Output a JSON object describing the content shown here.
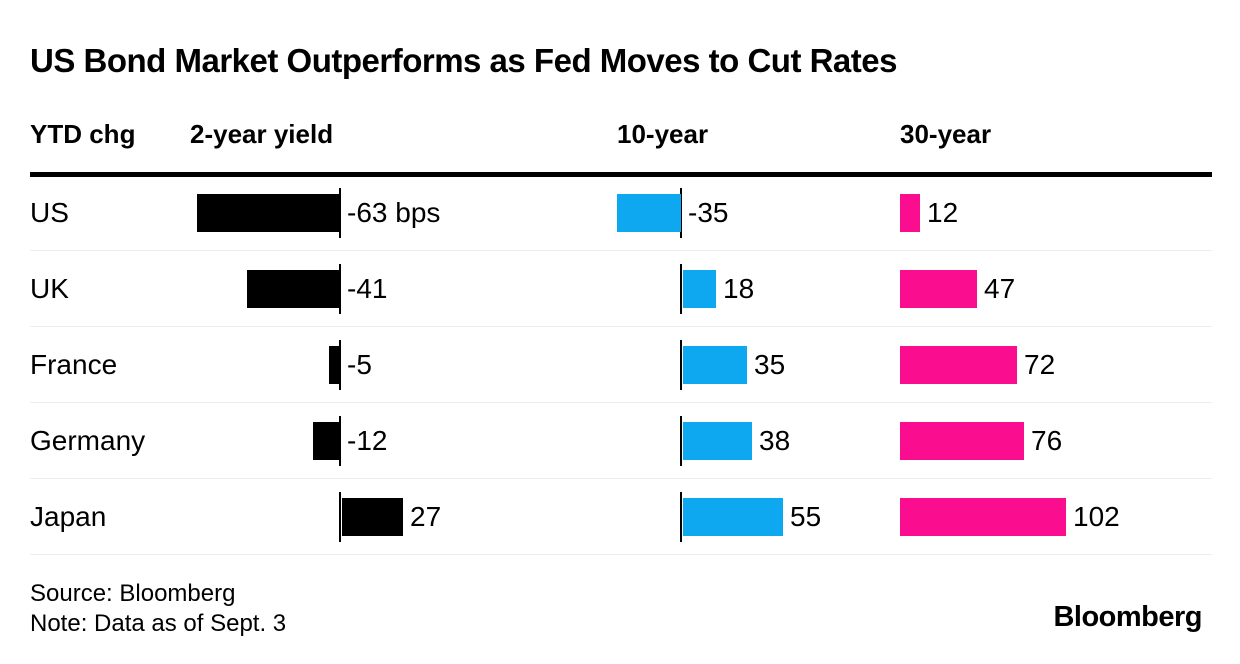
{
  "title": "US Bond Market Outperforms as Fed Moves to Cut Rates",
  "header": {
    "ytd": "YTD chg",
    "col_2year": "2-year yield",
    "col_10year": "10-year",
    "col_30year": "30-year"
  },
  "footer": {
    "source": "Source: Bloomberg",
    "note": "Note: Data as of Sept. 3",
    "logo": "Bloomberg"
  },
  "colors": {
    "black": "#000000",
    "blue": "#0ea8f0",
    "pink": "#fa0d8f",
    "separator": "#ededed"
  },
  "chart_data": {
    "type": "bar",
    "orientation": "horizontal",
    "title": "US Bond Market Outperforms as Fed Moves to Cut Rates",
    "unit": "bps (YTD change in yield)",
    "categories": [
      "US",
      "UK",
      "France",
      "Germany",
      "Japan"
    ],
    "series": [
      {
        "name": "2-year yield",
        "color_key": "black",
        "values": [
          -63,
          -41,
          -5,
          -12,
          27
        ],
        "labels": [
          "-63 bps",
          "-41",
          "-5",
          "-12",
          "27"
        ]
      },
      {
        "name": "10-year",
        "color_key": "blue",
        "values": [
          -35,
          18,
          35,
          38,
          55
        ],
        "labels": [
          "-35",
          "18",
          "35",
          "38",
          "55"
        ]
      },
      {
        "name": "30-year",
        "color_key": "pink",
        "values": [
          12,
          47,
          72,
          76,
          102
        ],
        "labels": [
          "12",
          "47",
          "72",
          "76",
          "102"
        ]
      }
    ],
    "legend_position": "column-headers",
    "grid": "row-separators-only",
    "source": "Source: Bloomberg",
    "note": "Note: Data as of Sept. 3"
  }
}
